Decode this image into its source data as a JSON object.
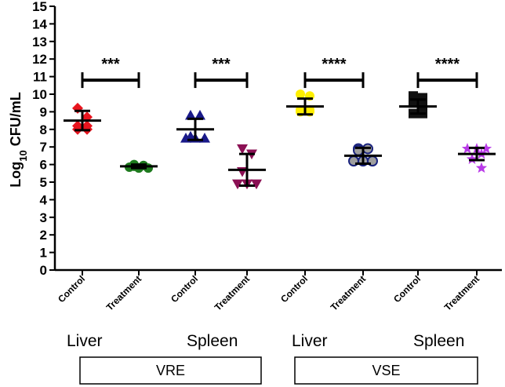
{
  "chart_data": {
    "type": "scatter",
    "title": "",
    "ylabel": {
      "main": "Log",
      "sub": "10",
      "rest": " CFU/mL"
    },
    "ylim": [
      0,
      15
    ],
    "yticks": [
      0,
      1,
      2,
      3,
      4,
      5,
      6,
      7,
      8,
      9,
      10,
      11,
      12,
      13,
      14,
      15
    ],
    "groups": [
      {
        "name": "Control",
        "tissue": "Liver",
        "organism": "VRE",
        "color": "#e8141e",
        "marker": "diamond",
        "mean": 8.5,
        "sd": 0.55,
        "points": [
          9.2,
          8.7,
          8.2,
          8.2,
          8.0,
          8.0
        ]
      },
      {
        "name": "Treatment",
        "tissue": "Liver",
        "organism": "VRE",
        "color": "#1e7a1e",
        "marker": "circle",
        "mean": 5.9,
        "sd": 0.1,
        "points": [
          6.0,
          5.95,
          5.9,
          5.85,
          5.8,
          5.8
        ]
      },
      {
        "name": "Control",
        "tissue": "Spleen",
        "organism": "VRE",
        "color": "#1a1a8a",
        "marker": "triangle",
        "mean": 8.0,
        "sd": 0.6,
        "points": [
          8.8,
          8.8,
          7.6,
          7.5,
          7.5,
          7.5
        ]
      },
      {
        "name": "Treatment",
        "tissue": "Spleen",
        "organism": "VRE",
        "color": "#8b1054",
        "marker": "triangle-down",
        "mean": 5.7,
        "sd": 0.9,
        "points": [
          6.9,
          6.6,
          5.6,
          4.9,
          4.9,
          4.9
        ]
      },
      {
        "name": "Control",
        "tissue": "Liver",
        "organism": "VSE",
        "color": "#ffef00",
        "marker": "circle",
        "mean": 9.3,
        "sd": 0.45,
        "points": [
          10.0,
          9.9,
          9.1,
          9.1,
          9.0,
          9.0
        ]
      },
      {
        "name": "Treatment",
        "tissue": "Liver",
        "organism": "VSE",
        "color": "#1a237e",
        "marker": "circle-gray",
        "mean": 6.5,
        "sd": 0.45,
        "points": [
          6.9,
          6.9,
          6.8,
          6.2,
          6.2,
          6.2
        ]
      },
      {
        "name": "Control",
        "tissue": "Spleen",
        "organism": "VSE",
        "color": "#111111",
        "marker": "square",
        "mean": 9.3,
        "sd": 0.4,
        "points": [
          9.9,
          9.8,
          9.5,
          9.3,
          8.9,
          8.9
        ]
      },
      {
        "name": "Treatment",
        "tissue": "Spleen",
        "organism": "VSE",
        "color": "#b93ae8",
        "marker": "star",
        "mean": 6.6,
        "sd": 0.35,
        "points": [
          6.9,
          6.9,
          6.9,
          6.6,
          6.3,
          5.8
        ]
      }
    ],
    "comparisons": [
      {
        "from": 0,
        "to": 1,
        "y": 10.8,
        "label": "***"
      },
      {
        "from": 2,
        "to": 3,
        "y": 10.8,
        "label": "***"
      },
      {
        "from": 4,
        "to": 5,
        "y": 10.8,
        "label": "****"
      },
      {
        "from": 6,
        "to": 7,
        "y": 10.8,
        "label": "****"
      }
    ],
    "tissue_labels": [
      {
        "text": "Liver",
        "group": 0
      },
      {
        "text": "Spleen",
        "group": 2
      },
      {
        "text": "Liver",
        "group": 4
      },
      {
        "text": "Spleen",
        "group": 6
      }
    ],
    "group_boxes": [
      {
        "text": "VRE",
        "from": 0,
        "to": 3
      },
      {
        "text": "VSE",
        "from": 4,
        "to": 7
      }
    ]
  }
}
